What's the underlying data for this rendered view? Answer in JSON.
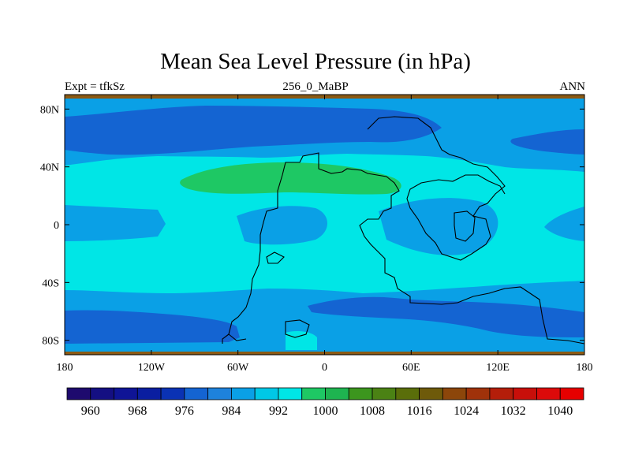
{
  "title": "Mean Sea Level Pressure (in hPa)",
  "left_string": "Expt = tfkSz",
  "center_string": "256_0_MaBP",
  "right_string": "ANN",
  "map": {
    "projection": "cylindrical equidistant",
    "lon_range": [
      -180,
      180
    ],
    "lat_range": [
      -90,
      90
    ],
    "x_ticks": [
      {
        "lon": -180,
        "label": "180"
      },
      {
        "lon": -120,
        "label": "120W"
      },
      {
        "lon": -60,
        "label": "60W"
      },
      {
        "lon": 0,
        "label": "0"
      },
      {
        "lon": 60,
        "label": "60E"
      },
      {
        "lon": 120,
        "label": "120E"
      },
      {
        "lon": 180,
        "label": "180"
      }
    ],
    "y_ticks": [
      {
        "lat": 80,
        "label": "80N"
      },
      {
        "lat": 40,
        "label": "40N"
      },
      {
        "lat": 0,
        "label": "0"
      },
      {
        "lat": -40,
        "label": "40S"
      },
      {
        "lat": -80,
        "label": "80S"
      }
    ],
    "background_level_color": "#00e6e6",
    "contour_fields": [
      {
        "name": "north-polar-band",
        "level": 984,
        "color": "#1464d2"
      },
      {
        "name": "south-band",
        "level": 984,
        "color": "#1464d2"
      },
      {
        "name": "subpolar-band",
        "level": 992,
        "color": "#0aa0e6"
      },
      {
        "name": "tropical-low",
        "level": 992,
        "color": "#0aa0e6"
      },
      {
        "name": "subtropical-high",
        "level": 1000,
        "color": "#1ec864"
      },
      {
        "name": "polar-rim",
        "level": 1016,
        "color": "#8c5a14"
      }
    ]
  },
  "colorbar": {
    "colors": [
      "#1e0a6e",
      "#140f82",
      "#0f1496",
      "#0a1ea0",
      "#0a32b4",
      "#1464d2",
      "#1e82dc",
      "#0aa0e6",
      "#00c8e6",
      "#00e6e6",
      "#1ec864",
      "#1eb450",
      "#3c961e",
      "#4b8214",
      "#5a6e0a",
      "#6e5a0a",
      "#8c460a",
      "#a0320a",
      "#b41e0a",
      "#c80f0a",
      "#dc0a0a",
      "#e60000"
    ],
    "labels": [
      "960",
      "968",
      "976",
      "984",
      "992",
      "1000",
      "1008",
      "1016",
      "1024",
      "1032",
      "1040"
    ]
  }
}
